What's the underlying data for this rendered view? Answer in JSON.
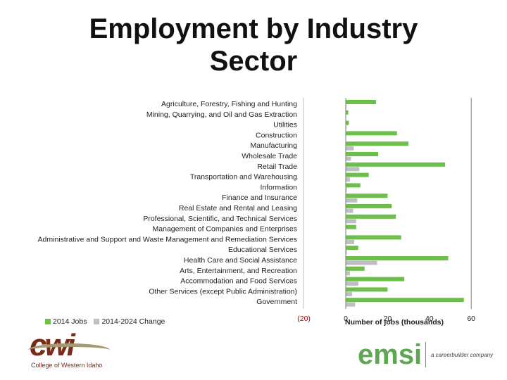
{
  "title": "Employment by Industry Sector",
  "legend": {
    "jobs_label": "2014 Jobs",
    "change_label": "2014-2024 Change"
  },
  "colors": {
    "jobs": "#6cc04a",
    "change": "#bfbfbf",
    "negative_tick": "#c00000"
  },
  "logos": {
    "cwi_wordmark": "cwi",
    "cwi_subtitle": "College of Western Idaho",
    "emsi_wordmark": "emsi",
    "emsi_tagline": "a careerbuilder company"
  },
  "chart_data": {
    "type": "bar",
    "orientation": "horizontal",
    "title": "Employment by Industry Sector",
    "xlabel": "Number of jobs (thousands)",
    "ylabel": "",
    "xlim": [
      -20,
      60
    ],
    "xticks": [
      -20,
      0,
      20,
      40,
      60
    ],
    "xtick_labels": [
      "(20)",
      "0",
      "20",
      "40",
      "60"
    ],
    "grid": false,
    "legend_position": "bottom-left",
    "categories": [
      "Agriculture, Forestry, Fishing and Hunting",
      "Mining, Quarrying, and Oil and Gas Extraction",
      "Utilities",
      "Construction",
      "Manufacturing",
      "Wholesale Trade",
      "Retail Trade",
      "Transportation and Warehousing",
      "Information",
      "Finance and Insurance",
      "Real Estate and Rental and Leasing",
      "Professional, Scientific, and Technical Services",
      "Management of Companies and Enterprises",
      "Administrative and Support and Waste Management and Remediation Services",
      "Educational Services",
      "Health Care and Social Assistance",
      "Arts, Entertainment, and Recreation",
      "Accommodation and Food Services",
      "Other Services (except Public Administration)",
      "Government"
    ],
    "series": [
      {
        "name": "2014 Jobs",
        "values": [
          14.5,
          1.2,
          1.5,
          24.5,
          30.0,
          15.5,
          47.5,
          11.0,
          7.0,
          20.0,
          22.0,
          24.0,
          5.0,
          26.5,
          6.0,
          49.0,
          9.0,
          28.0,
          20.0,
          56.5
        ]
      },
      {
        "name": "2014-2024 Change",
        "values": [
          0.3,
          0.2,
          0.3,
          0.0,
          3.8,
          2.5,
          6.5,
          2.0,
          0.5,
          5.5,
          3.5,
          5.0,
          0.2,
          4.0,
          0.5,
          15.0,
          2.0,
          6.0,
          3.0,
          4.5
        ]
      }
    ]
  }
}
